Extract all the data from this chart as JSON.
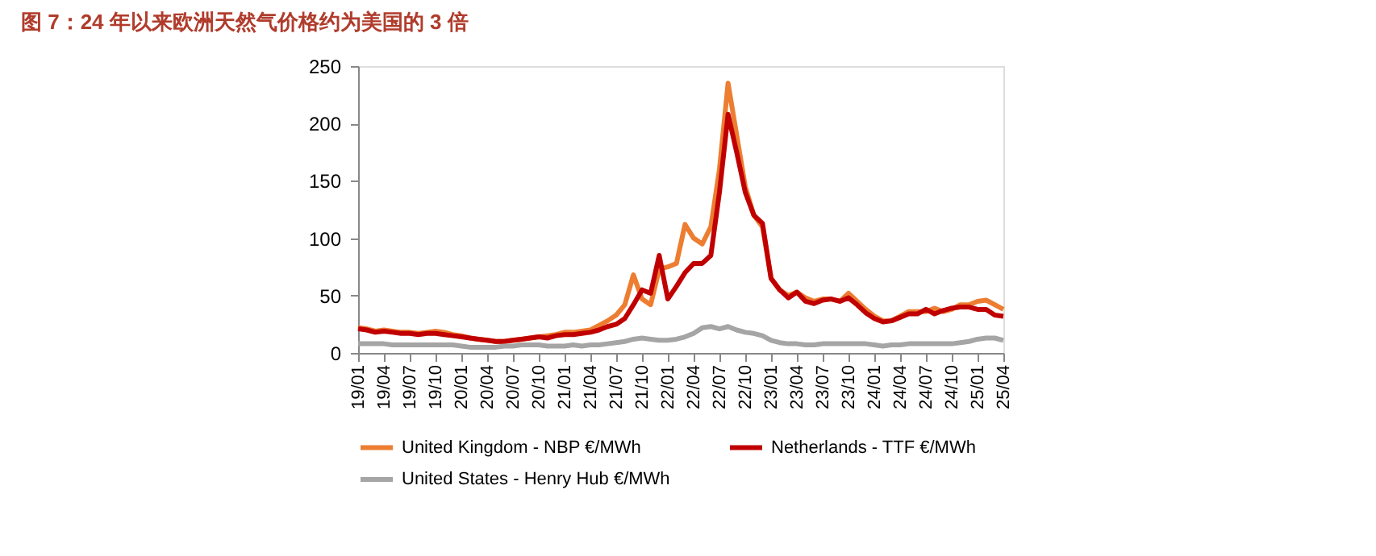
{
  "chart_data": {
    "type": "line",
    "title": "图 7：24 年以来欧洲天然气价格约为美国的 3 倍",
    "categories": [
      "19/01",
      null,
      null,
      "19/04",
      null,
      null,
      "19/07",
      null,
      null,
      "19/10",
      null,
      null,
      "20/01",
      null,
      null,
      "20/04",
      null,
      null,
      "20/07",
      null,
      null,
      "20/10",
      null,
      null,
      "21/01",
      null,
      null,
      "21/04",
      null,
      null,
      "21/07",
      null,
      null,
      "21/10",
      null,
      null,
      "22/01",
      null,
      null,
      "22/04",
      null,
      null,
      "22/07",
      null,
      null,
      "22/10",
      null,
      null,
      "23/01",
      null,
      null,
      "23/04",
      null,
      null,
      "23/07",
      null,
      null,
      "23/10",
      null,
      null,
      "24/01",
      null,
      null,
      "24/04",
      null,
      null,
      "24/07",
      null,
      null,
      "24/10",
      null,
      null,
      "25/01",
      null,
      null,
      "25/04"
    ],
    "series": [
      {
        "name": "United Kingdom - NBP €/MWh",
        "color": "#ed7d31",
        "values": [
          22,
          21,
          19,
          20,
          19,
          18,
          18,
          17,
          18,
          19,
          18,
          16,
          15,
          13,
          12,
          11,
          10,
          10,
          11,
          12,
          13,
          14,
          15,
          16,
          18,
          18,
          19,
          20,
          24,
          28,
          33,
          42,
          68,
          47,
          42,
          73,
          75,
          78,
          112,
          100,
          95,
          110,
          160,
          235,
          190,
          145,
          120,
          110,
          65,
          55,
          50,
          53,
          48,
          45,
          47,
          47,
          45,
          52,
          45,
          38,
          32,
          28,
          28,
          32,
          36,
          36,
          36,
          39,
          36,
          38,
          42,
          42,
          45,
          46,
          42,
          38
        ]
      },
      {
        "name": "Netherlands - TTF €/MWh",
        "color": "#c00000",
        "values": [
          21,
          20,
          18,
          19,
          18,
          17,
          17,
          16,
          17,
          17,
          16,
          15,
          14,
          13,
          12,
          11,
          10,
          10,
          11,
          12,
          13,
          14,
          13,
          15,
          16,
          16,
          17,
          18,
          20,
          23,
          25,
          30,
          42,
          55,
          52,
          85,
          47,
          58,
          70,
          78,
          78,
          85,
          140,
          208,
          175,
          140,
          120,
          113,
          65,
          55,
          48,
          53,
          45,
          43,
          46,
          47,
          45,
          48,
          42,
          35,
          30,
          27,
          28,
          31,
          34,
          34,
          38,
          34,
          37,
          39,
          40,
          40,
          38,
          38,
          33,
          32
        ]
      },
      {
        "name": "United States - Henry Hub €/MWh",
        "color": "#a5a5a5",
        "values": [
          8,
          8,
          8,
          8,
          7,
          7,
          7,
          7,
          7,
          7,
          7,
          7,
          6,
          5,
          5,
          5,
          5,
          6,
          6,
          7,
          7,
          7,
          6,
          6,
          6,
          7,
          6,
          7,
          7,
          8,
          9,
          10,
          12,
          13,
          12,
          11,
          11,
          12,
          14,
          17,
          22,
          23,
          21,
          23,
          20,
          18,
          17,
          15,
          11,
          9,
          8,
          8,
          7,
          7,
          8,
          8,
          8,
          8,
          8,
          8,
          7,
          6,
          7,
          7,
          8,
          8,
          8,
          8,
          8,
          8,
          9,
          10,
          12,
          13,
          13,
          11
        ]
      }
    ],
    "ylim": [
      0,
      250
    ],
    "yticks": [
      0,
      50,
      100,
      150,
      200,
      250
    ],
    "grid": false,
    "legend": "bottom",
    "marker": "none",
    "line_style": "solid"
  }
}
